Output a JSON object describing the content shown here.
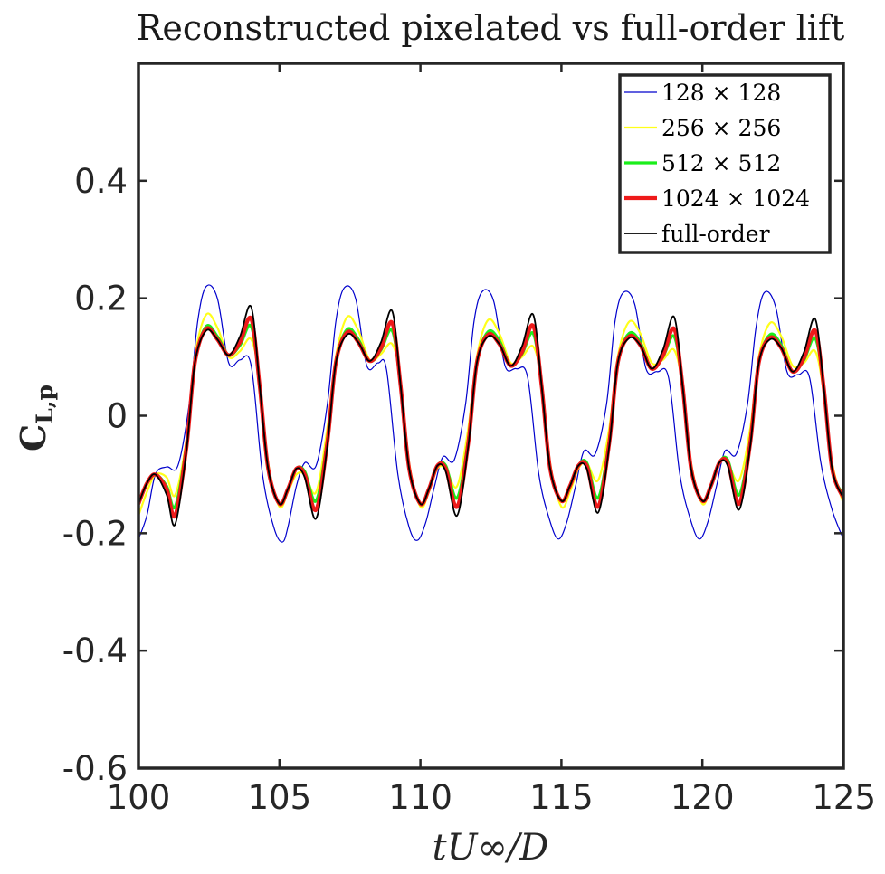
{
  "chart_data": {
    "type": "line",
    "title": "Reconstructed pixelated vs full-order lift",
    "xlabel": "tU∞/D",
    "ylabel_main": "C",
    "ylabel_sub": "L,p",
    "xlim": [
      100,
      125
    ],
    "ylim": [
      -0.6,
      0.6
    ],
    "xticks": [
      100,
      105,
      110,
      115,
      120,
      125
    ],
    "xtick_labels": [
      "100",
      "105",
      "110",
      "115",
      "120",
      "125"
    ],
    "yticks": [
      -0.6,
      -0.4,
      -0.2,
      0,
      0.2,
      0.4
    ],
    "ytick_labels": [
      "-0.6",
      "-0.4",
      "-0.2",
      "0",
      "0.2",
      "0.4"
    ],
    "grid": false,
    "legend_position": "top-right",
    "period": 5,
    "base_minima": [
      {
        "t": 100.7,
        "v": -0.1
      },
      {
        "t": 105.9,
        "v": -0.09
      },
      {
        "t": 110.8,
        "v": -0.08
      },
      {
        "t": 115.8,
        "v": -0.08
      },
      {
        "t": 120.8,
        "v": -0.07
      }
    ],
    "series": [
      {
        "name": "128 × 128",
        "color": "#0000cc",
        "width": 1.2,
        "x": [
          100.0,
          100.3,
          100.6,
          101.0,
          101.4,
          101.8,
          102.1,
          102.4,
          102.8,
          103.2,
          103.6,
          104.0,
          104.4,
          104.8,
          105.1,
          105.3,
          105.6,
          105.9,
          106.3,
          106.7,
          107.0,
          107.3,
          107.7,
          108.1,
          108.5,
          108.8,
          109.2,
          109.6,
          109.9,
          110.2,
          110.5,
          110.8,
          111.2,
          111.6,
          111.9,
          112.2,
          112.6,
          113.0,
          113.4,
          113.8,
          114.2,
          114.6,
          114.9,
          115.2,
          115.5,
          115.8,
          116.2,
          116.6,
          116.9,
          117.2,
          117.6,
          118.0,
          118.4,
          118.8,
          119.2,
          119.6,
          119.9,
          120.2,
          120.5,
          120.8,
          121.2,
          121.6,
          121.9,
          122.2,
          122.6,
          123.0,
          123.4,
          123.8,
          124.2,
          124.6,
          125.0
        ],
        "values": [
          -0.21,
          -0.17,
          -0.1,
          -0.087,
          -0.085,
          0.02,
          0.16,
          0.22,
          0.2,
          0.09,
          0.095,
          0.085,
          -0.1,
          -0.19,
          -0.215,
          -0.19,
          -0.12,
          -0.08,
          -0.085,
          0.02,
          0.16,
          0.218,
          0.2,
          0.085,
          0.09,
          0.078,
          -0.1,
          -0.19,
          -0.212,
          -0.18,
          -0.12,
          -0.07,
          -0.075,
          0.02,
          0.16,
          0.212,
          0.195,
          0.085,
          0.08,
          0.066,
          -0.1,
          -0.18,
          -0.21,
          -0.18,
          -0.12,
          -0.06,
          -0.065,
          0.02,
          0.16,
          0.21,
          0.19,
          0.08,
          0.075,
          0.065,
          -0.1,
          -0.18,
          -0.21,
          -0.18,
          -0.12,
          -0.06,
          -0.065,
          0.02,
          0.15,
          0.21,
          0.185,
          0.075,
          0.07,
          0.065,
          -0.08,
          -0.16,
          -0.21
        ]
      },
      {
        "name": "256 × 256",
        "color": "#ffff1a",
        "width": 2.2,
        "x": [
          100.0,
          100.3,
          100.6,
          101.0,
          101.3,
          101.7,
          102.0,
          102.4,
          102.8,
          103.2,
          103.6,
          104.0,
          104.3,
          104.6,
          105.0,
          105.3,
          105.6,
          105.9,
          106.3,
          106.7,
          107.0,
          107.4,
          107.8,
          108.2,
          108.6,
          109.0,
          109.3,
          109.6,
          110.0,
          110.3,
          110.6,
          110.9,
          111.3,
          111.7,
          112.0,
          112.4,
          112.8,
          113.2,
          113.6,
          114.0,
          114.3,
          114.6,
          115.0,
          115.3,
          115.6,
          115.9,
          116.3,
          116.7,
          117.0,
          117.4,
          117.8,
          118.2,
          118.6,
          119.0,
          119.3,
          119.6,
          120.0,
          120.3,
          120.6,
          120.9,
          121.3,
          121.7,
          122.0,
          122.4,
          122.8,
          123.2,
          123.6,
          124.0,
          124.3,
          124.6,
          125.0
        ],
        "values": [
          -0.17,
          -0.13,
          -0.1,
          -0.105,
          -0.135,
          -0.04,
          0.1,
          0.172,
          0.15,
          0.1,
          0.11,
          0.13,
          0.06,
          -0.08,
          -0.155,
          -0.13,
          -0.1,
          -0.1,
          -0.13,
          -0.02,
          0.1,
          0.168,
          0.145,
          0.095,
          0.105,
          0.122,
          0.06,
          -0.08,
          -0.155,
          -0.13,
          -0.09,
          -0.09,
          -0.12,
          -0.02,
          0.1,
          0.163,
          0.14,
          0.09,
          0.1,
          0.118,
          0.06,
          -0.08,
          -0.155,
          -0.13,
          -0.09,
          -0.08,
          -0.11,
          -0.02,
          0.1,
          0.16,
          0.14,
          0.09,
          0.095,
          0.112,
          0.05,
          -0.08,
          -0.15,
          -0.12,
          -0.08,
          -0.08,
          -0.11,
          -0.02,
          0.1,
          0.158,
          0.135,
          0.085,
          0.09,
          0.11,
          0.04,
          -0.08,
          -0.15
        ]
      },
      {
        "name": "512 × 512",
        "color": "#1aee1a",
        "width": 3.2,
        "x": [
          100.0,
          100.3,
          100.6,
          101.0,
          101.3,
          101.7,
          102.0,
          102.4,
          102.8,
          103.2,
          103.6,
          104.0,
          104.3,
          104.6,
          105.0,
          105.3,
          105.6,
          105.9,
          106.3,
          106.7,
          107.0,
          107.4,
          107.8,
          108.2,
          108.6,
          109.0,
          109.3,
          109.6,
          110.0,
          110.3,
          110.6,
          110.9,
          111.3,
          111.7,
          112.0,
          112.4,
          112.8,
          113.2,
          113.6,
          114.0,
          114.3,
          114.6,
          115.0,
          115.3,
          115.6,
          115.9,
          116.3,
          116.7,
          117.0,
          117.4,
          117.8,
          118.2,
          118.6,
          119.0,
          119.3,
          119.6,
          120.0,
          120.3,
          120.6,
          120.9,
          121.3,
          121.7,
          122.0,
          122.4,
          122.8,
          123.2,
          123.6,
          124.0,
          124.3,
          124.6,
          125.0
        ],
        "values": [
          -0.15,
          -0.115,
          -0.1,
          -0.12,
          -0.155,
          -0.05,
          0.09,
          0.152,
          0.135,
          0.103,
          0.12,
          0.152,
          0.05,
          -0.09,
          -0.15,
          -0.125,
          -0.09,
          -0.095,
          -0.145,
          -0.04,
          0.09,
          0.147,
          0.13,
          0.093,
          0.112,
          0.145,
          0.05,
          -0.09,
          -0.15,
          -0.125,
          -0.085,
          -0.085,
          -0.14,
          -0.04,
          0.09,
          0.143,
          0.128,
          0.085,
          0.105,
          0.14,
          0.05,
          -0.09,
          -0.145,
          -0.12,
          -0.085,
          -0.08,
          -0.14,
          -0.04,
          0.09,
          0.14,
          0.125,
          0.08,
          0.1,
          0.135,
          0.05,
          -0.09,
          -0.145,
          -0.12,
          -0.08,
          -0.075,
          -0.135,
          -0.04,
          0.09,
          0.138,
          0.12,
          0.075,
          0.095,
          0.132,
          0.05,
          -0.09,
          -0.135
        ]
      },
      {
        "name": "1024 × 1024",
        "color": "#ee1a1a",
        "width": 4.2,
        "x": [
          100.0,
          100.3,
          100.6,
          101.0,
          101.3,
          101.7,
          102.0,
          102.4,
          102.8,
          103.2,
          103.6,
          104.0,
          104.3,
          104.6,
          105.0,
          105.3,
          105.6,
          105.9,
          106.3,
          106.7,
          107.0,
          107.4,
          107.8,
          108.2,
          108.6,
          109.0,
          109.3,
          109.6,
          110.0,
          110.3,
          110.6,
          110.9,
          111.3,
          111.7,
          112.0,
          112.4,
          112.8,
          113.2,
          113.6,
          114.0,
          114.3,
          114.6,
          115.0,
          115.3,
          115.6,
          115.9,
          116.3,
          116.7,
          117.0,
          117.4,
          117.8,
          118.2,
          118.6,
          119.0,
          119.3,
          119.6,
          120.0,
          120.3,
          120.6,
          120.9,
          121.3,
          121.7,
          122.0,
          122.4,
          122.8,
          123.2,
          123.6,
          124.0,
          124.3,
          124.6,
          125.0
        ],
        "values": [
          -0.15,
          -0.115,
          -0.1,
          -0.125,
          -0.17,
          -0.055,
          0.09,
          0.148,
          0.13,
          0.103,
          0.125,
          0.165,
          0.05,
          -0.09,
          -0.15,
          -0.125,
          -0.09,
          -0.1,
          -0.16,
          -0.045,
          0.09,
          0.142,
          0.125,
          0.093,
          0.115,
          0.158,
          0.05,
          -0.09,
          -0.15,
          -0.125,
          -0.085,
          -0.09,
          -0.155,
          -0.045,
          0.09,
          0.138,
          0.122,
          0.085,
          0.108,
          0.153,
          0.05,
          -0.09,
          -0.145,
          -0.12,
          -0.085,
          -0.085,
          -0.155,
          -0.045,
          0.09,
          0.135,
          0.12,
          0.08,
          0.102,
          0.148,
          0.05,
          -0.09,
          -0.145,
          -0.12,
          -0.08,
          -0.08,
          -0.15,
          -0.045,
          0.09,
          0.133,
          0.115,
          0.075,
          0.098,
          0.145,
          0.05,
          -0.09,
          -0.14
        ]
      },
      {
        "name": "full-order",
        "color": "#000000",
        "width": 1.8,
        "x": [
          100.0,
          100.3,
          100.6,
          101.0,
          101.3,
          101.7,
          102.0,
          102.4,
          102.8,
          103.2,
          103.6,
          104.0,
          104.3,
          104.6,
          105.0,
          105.3,
          105.6,
          105.9,
          106.3,
          106.7,
          107.0,
          107.4,
          107.8,
          108.2,
          108.6,
          109.0,
          109.3,
          109.6,
          110.0,
          110.3,
          110.6,
          110.9,
          111.3,
          111.7,
          112.0,
          112.4,
          112.8,
          113.2,
          113.6,
          114.0,
          114.3,
          114.6,
          115.0,
          115.3,
          115.6,
          115.9,
          116.3,
          116.7,
          117.0,
          117.4,
          117.8,
          118.2,
          118.6,
          119.0,
          119.3,
          119.6,
          120.0,
          120.3,
          120.6,
          120.9,
          121.3,
          121.7,
          122.0,
          122.4,
          122.8,
          123.2,
          123.6,
          124.0,
          124.3,
          124.6,
          125.0
        ],
        "values": [
          -0.15,
          -0.115,
          -0.1,
          -0.135,
          -0.185,
          -0.06,
          0.09,
          0.145,
          0.13,
          0.103,
          0.135,
          0.185,
          0.05,
          -0.09,
          -0.15,
          -0.125,
          -0.09,
          -0.105,
          -0.175,
          -0.05,
          0.09,
          0.138,
          0.125,
          0.093,
          0.125,
          0.178,
          0.05,
          -0.09,
          -0.15,
          -0.125,
          -0.085,
          -0.095,
          -0.17,
          -0.05,
          0.09,
          0.135,
          0.122,
          0.085,
          0.118,
          0.172,
          0.05,
          -0.09,
          -0.145,
          -0.12,
          -0.085,
          -0.09,
          -0.165,
          -0.05,
          0.09,
          0.132,
          0.12,
          0.08,
          0.112,
          0.168,
          0.05,
          -0.09,
          -0.145,
          -0.12,
          -0.08,
          -0.085,
          -0.16,
          -0.05,
          0.09,
          0.13,
          0.115,
          0.075,
          0.108,
          0.165,
          0.05,
          -0.09,
          -0.14
        ]
      }
    ]
  }
}
